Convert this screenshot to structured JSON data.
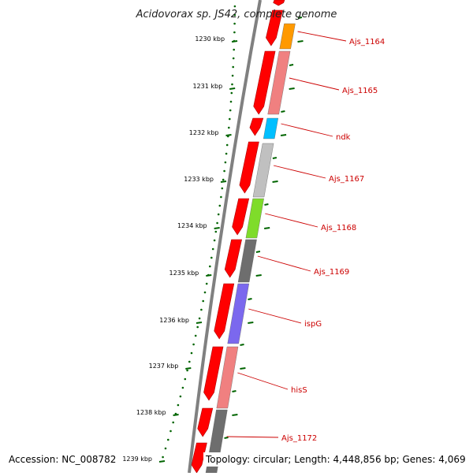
{
  "title": "Acidovorax sp. JS42, complete genome",
  "accession": "Accession: NC_008782",
  "stats": "Topology: circular; Length: 4,448,856 bp; Genes: 4,069",
  "kbp_ticks": [
    {
      "kbp": 1230,
      "label": "1230 kbp"
    },
    {
      "kbp": 1231,
      "label": "1231 kbp"
    },
    {
      "kbp": 1232,
      "label": "1232 kbp"
    },
    {
      "kbp": 1233,
      "label": "1233 kbp"
    },
    {
      "kbp": 1234,
      "label": "1234 kbp"
    },
    {
      "kbp": 1235,
      "label": "1235 kbp"
    },
    {
      "kbp": 1236,
      "label": "1236 kbp"
    },
    {
      "kbp": 1237,
      "label": "1237 kbp"
    },
    {
      "kbp": 1238,
      "label": "1238 kbp"
    },
    {
      "kbp": 1239,
      "label": "1239 kbp"
    }
  ],
  "genes": [
    {
      "name": "Ajs_1164",
      "color": "#ff9900"
    },
    {
      "name": "Ajs_1165",
      "color": "#f08080"
    },
    {
      "name": "ndk",
      "color": "#00bfff"
    },
    {
      "name": "Ajs_1167",
      "color": "#c0c0c0"
    },
    {
      "name": "Ajs_1168",
      "color": "#7fdc2a"
    },
    {
      "name": "Ajs_1169",
      "color": "#6e6e6e"
    },
    {
      "name": "ispG",
      "color": "#7b68ee"
    },
    {
      "name": "hisS",
      "color": "#f08080"
    },
    {
      "name": "Ajs_1172",
      "color": "#6e6e6e"
    }
  ],
  "colors": {
    "forward_strand_arrow": "#ff0000",
    "backbone": "#808080",
    "tick_marks": "#006400",
    "label_text": "#cc0000"
  }
}
